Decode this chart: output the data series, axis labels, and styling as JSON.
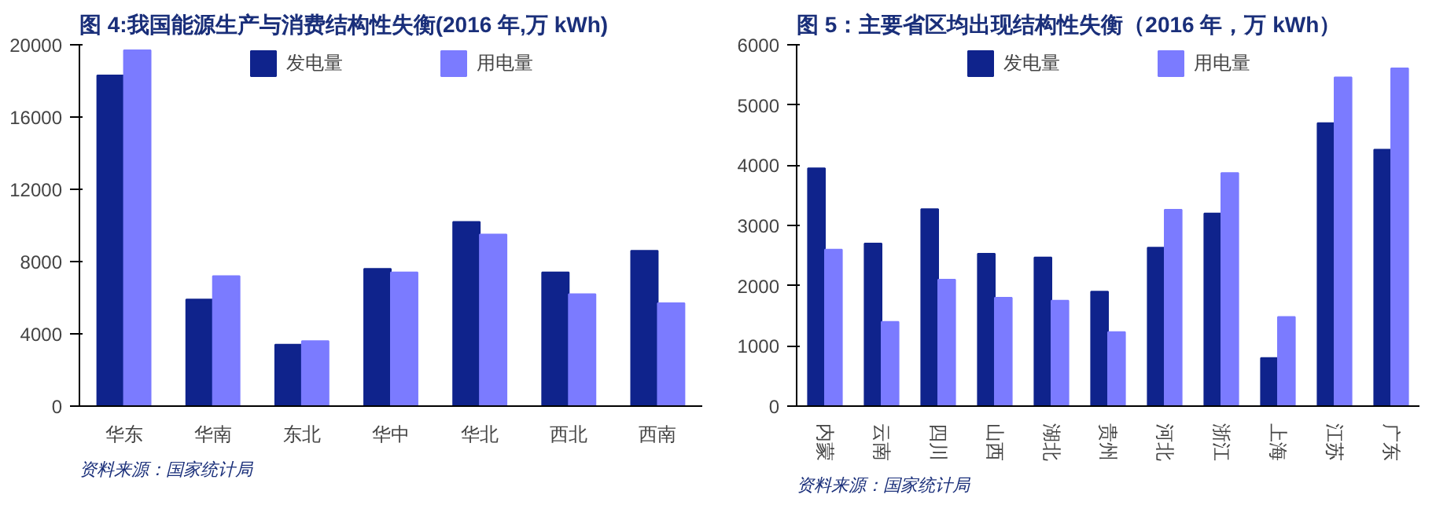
{
  "chart_data": [
    {
      "type": "bar",
      "title": "图 4:我国能源生产与消费结构性失衡(2016 年,万 kWh)",
      "categories": [
        "华东",
        "华南",
        "东北",
        "华中",
        "华北",
        "西北",
        "西南"
      ],
      "series": [
        {
          "name": "发电量",
          "color": "#0f238c",
          "values": [
            18300,
            5900,
            3400,
            7600,
            10200,
            7400,
            8600
          ]
        },
        {
          "name": "用电量",
          "color": "#7b7bff",
          "values": [
            19700,
            7200,
            3600,
            7400,
            9500,
            6200,
            5700
          ]
        }
      ],
      "ylim": [
        0,
        20000
      ],
      "yticks": [
        0,
        4000,
        8000,
        12000,
        16000,
        20000
      ],
      "grid": false,
      "legend": "top",
      "annotations": [
        "资料来源：国家统计局"
      ]
    },
    {
      "type": "bar",
      "title": "图 5：主要省区均出现结构性失衡（2016 年，万 kWh）",
      "categories": [
        "内蒙",
        "云南",
        "四川",
        "山西",
        "湖北",
        "贵州",
        "河北",
        "浙江",
        "上海",
        "江苏",
        "广东"
      ],
      "series": [
        {
          "name": "发电量",
          "color": "#0f238c",
          "values": [
            3950,
            2700,
            3270,
            2530,
            2470,
            1900,
            2630,
            3200,
            800,
            4700,
            4260
          ]
        },
        {
          "name": "用电量",
          "color": "#7b7bff",
          "values": [
            2600,
            1400,
            2100,
            1800,
            1750,
            1230,
            3260,
            3870,
            1480,
            5460,
            5610
          ]
        }
      ],
      "ylim": [
        0,
        6000
      ],
      "yticks": [
        0,
        1000,
        2000,
        3000,
        4000,
        5000,
        6000
      ],
      "grid": false,
      "legend": "top",
      "annotations": [
        "资料来源：国家统计局"
      ]
    }
  ]
}
